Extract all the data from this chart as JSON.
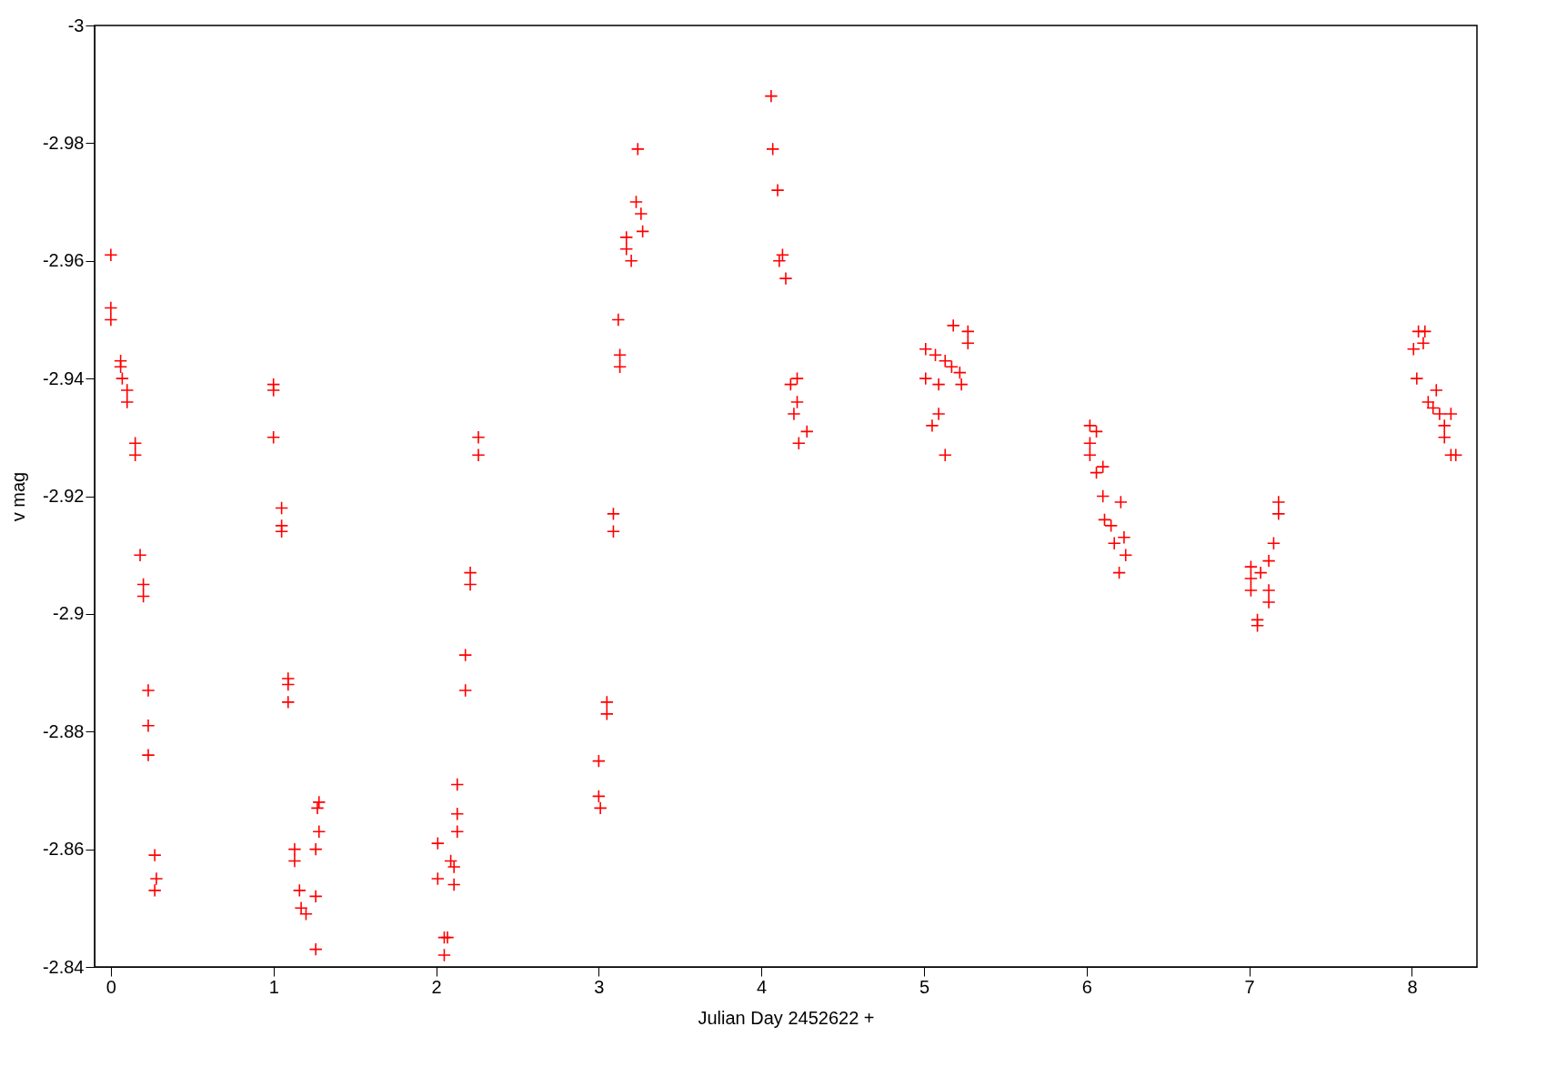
{
  "chart_data": {
    "type": "scatter",
    "xlabel": "Julian Day 2452622 +",
    "ylabel": "v mag",
    "xlim": [
      -0.1,
      8.4
    ],
    "ylim": [
      -2.84,
      -3
    ],
    "xticks": [
      0,
      1,
      2,
      3,
      4,
      5,
      6,
      7,
      8
    ],
    "yticks": [
      -3,
      -2.98,
      -2.96,
      -2.94,
      -2.92,
      -2.9,
      -2.88,
      -2.86,
      -2.84
    ],
    "marker": "cross",
    "grid": false,
    "series": [
      {
        "color": "#ff0000",
        "x": [
          0,
          0,
          0,
          0.06,
          0.06,
          0.07,
          0.1,
          0.1,
          0.15,
          0.15,
          0.18,
          0.2,
          0.2,
          0.23,
          0.23,
          0.23,
          0.27,
          0.28,
          0.27,
          1.0,
          1.0,
          1.0,
          1.05,
          1.05,
          1.05,
          1.09,
          1.09,
          1.09,
          1.13,
          1.13,
          1.16,
          1.17,
          1.2,
          1.26,
          1.26,
          1.26,
          1.28,
          1.27,
          1.28,
          2.01,
          2.01,
          2.05,
          2.05,
          2.07,
          2.09,
          2.11,
          2.11,
          2.13,
          2.13,
          2.13,
          2.18,
          2.18,
          2.21,
          2.21,
          2.26,
          2.26,
          3.0,
          3.0,
          3.01,
          3.05,
          3.05,
          3.09,
          3.09,
          3.12,
          3.13,
          3.13,
          3.17,
          3.17,
          3.2,
          3.23,
          3.26,
          3.27,
          3.24,
          4.06,
          4.07,
          4.1,
          4.11,
          4.13,
          4.15,
          4.18,
          4.22,
          4.22,
          4.2,
          4.23,
          4.28,
          5.01,
          5.01,
          5.07,
          5.09,
          5.09,
          5.05,
          5.13,
          5.13,
          5.18,
          5.17,
          5.22,
          5.23,
          5.27,
          5.27,
          6.02,
          6.02,
          6.02,
          6.06,
          6.06,
          6.1,
          6.1,
          6.11,
          6.15,
          6.17,
          6.2,
          6.21,
          6.23,
          6.24,
          7.01,
          7.01,
          7.01,
          7.05,
          7.05,
          7.07,
          7.12,
          7.12,
          7.12,
          7.15,
          7.18,
          7.18,
          8.01,
          8.03,
          8.04,
          8.07,
          8.08,
          8.1,
          8.13,
          8.15,
          8.17,
          8.2,
          8.24,
          8.2,
          8.24,
          8.27
        ],
        "values": [
          -2.961,
          -2.952,
          -2.95,
          -2.943,
          -2.942,
          -2.94,
          -2.938,
          -2.936,
          -2.929,
          -2.927,
          -2.91,
          -2.905,
          -2.903,
          -2.887,
          -2.881,
          -2.876,
          -2.859,
          -2.855,
          -2.853,
          -2.939,
          -2.938,
          -2.93,
          -2.918,
          -2.915,
          -2.914,
          -2.889,
          -2.888,
          -2.885,
          -2.86,
          -2.858,
          -2.853,
          -2.85,
          -2.849,
          -2.843,
          -2.852,
          -2.86,
          -2.863,
          -2.867,
          -2.868,
          -2.861,
          -2.855,
          -2.845,
          -2.842,
          -2.845,
          -2.858,
          -2.857,
          -2.854,
          -2.863,
          -2.866,
          -2.871,
          -2.887,
          -2.893,
          -2.907,
          -2.905,
          -2.93,
          -2.927,
          -2.875,
          -2.869,
          -2.867,
          -2.885,
          -2.883,
          -2.917,
          -2.914,
          -2.95,
          -2.944,
          -2.942,
          -2.964,
          -2.962,
          -2.96,
          -2.97,
          -2.968,
          -2.965,
          -2.979,
          -2.988,
          -2.979,
          -2.972,
          -2.96,
          -2.961,
          -2.957,
          -2.939,
          -2.94,
          -2.936,
          -2.934,
          -2.929,
          -2.931,
          -2.945,
          -2.94,
          -2.944,
          -2.939,
          -2.934,
          -2.932,
          -2.927,
          -2.943,
          -2.949,
          -2.942,
          -2.941,
          -2.939,
          -2.948,
          -2.946,
          -2.932,
          -2.929,
          -2.927,
          -2.931,
          -2.924,
          -2.925,
          -2.92,
          -2.916,
          -2.915,
          -2.912,
          -2.907,
          -2.919,
          -2.913,
          -2.91,
          -2.908,
          -2.906,
          -2.904,
          -2.899,
          -2.898,
          -2.907,
          -2.909,
          -2.904,
          -2.902,
          -2.912,
          -2.919,
          -2.917,
          -2.945,
          -2.94,
          -2.948,
          -2.946,
          -2.948,
          -2.936,
          -2.935,
          -2.938,
          -2.934,
          -2.932,
          -2.934,
          -2.93,
          -2.927,
          -2.927
        ]
      }
    ]
  }
}
